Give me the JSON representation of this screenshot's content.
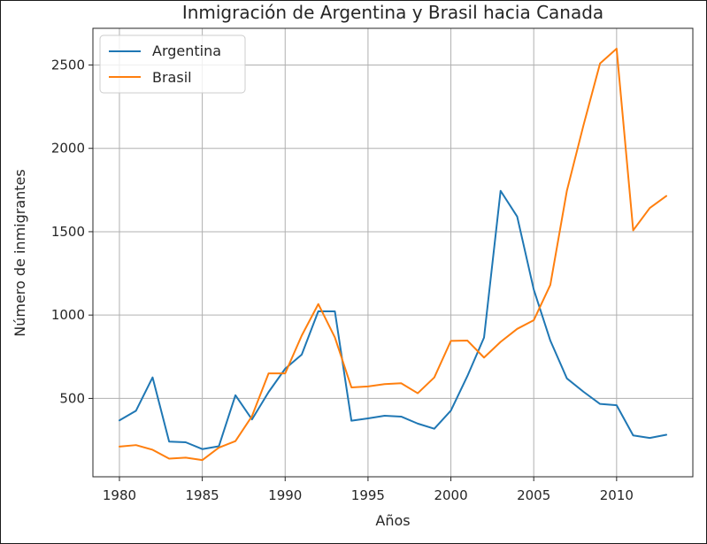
{
  "chart_data": {
    "type": "line",
    "title": "Inmigración de Argentina y Brasil hacia Canada",
    "xlabel": "Años",
    "ylabel": "Número de inmigrantes",
    "xlim": [
      1978.4,
      2014.6
    ],
    "ylim": [
      30,
      2720
    ],
    "xticks": [
      1980,
      1985,
      1990,
      1995,
      2000,
      2005,
      2010
    ],
    "yticks": [
      500,
      1000,
      1500,
      2000,
      2500
    ],
    "grid": true,
    "legend_position": "top-left",
    "x": [
      1980,
      1981,
      1982,
      1983,
      1984,
      1985,
      1986,
      1987,
      1988,
      1989,
      1990,
      1991,
      1992,
      1993,
      1994,
      1995,
      1996,
      1997,
      1998,
      1999,
      2000,
      2001,
      2002,
      2003,
      2004,
      2005,
      2006,
      2007,
      2008,
      2009,
      2010,
      2011,
      2012,
      2013
    ],
    "series": [
      {
        "name": "Argentina",
        "color": "#1f77b4",
        "values": [
          368,
          426,
          626,
          241,
          237,
          196,
          213,
          519,
          374,
          538,
          678,
          763,
          1023,
          1022,
          366,
          380,
          396,
          391,
          349,
          318,
          427,
          635,
          865,
          1745,
          1591,
          1153,
          847,
          620,
          540,
          467,
          459,
          278,
          263,
          282
        ]
      },
      {
        "name": "Brasil",
        "color": "#ff7f0e",
        "values": [
          211,
          220,
          192,
          139,
          145,
          130,
          205,
          244,
          394,
          650,
          650,
          877,
          1066,
          866,
          566,
          572,
          586,
          591,
          531,
          626,
          845,
          847,
          745,
          839,
          917,
          969,
          1181,
          1746,
          2138,
          2509,
          2598,
          1508,
          1642,
          1714
        ]
      }
    ]
  }
}
